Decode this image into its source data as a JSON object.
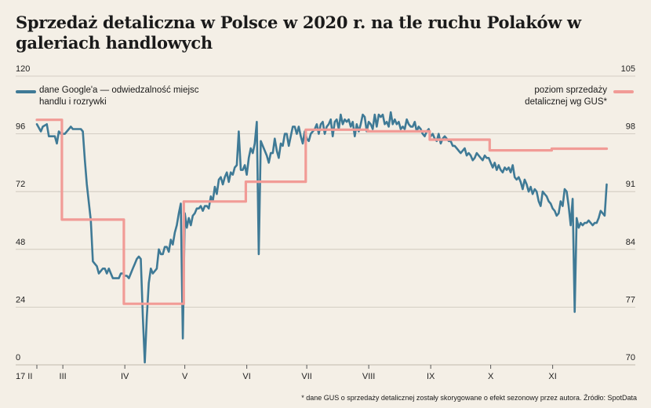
{
  "title": "Sprzedaż detaliczna w Polsce w 2020 r. na tle ruchu Polaków w galeriach handlowych",
  "footnote": "* dane GUS o sprzedaży detalicznej zostały skorygowane o efekt sezonowy przez autora. Źródło: SpotData",
  "colors": {
    "google": "#3f7a96",
    "gus": "#f19b96",
    "background": "#f4efe6",
    "grid": "#c9c3b8"
  },
  "chart_data": {
    "type": "line",
    "title": "Sprzedaż detaliczna w Polsce w 2020 r. na tle ruchu Polaków w galeriach handlowych",
    "x_ticks": [
      {
        "label": "17 II",
        "day": 0
      },
      {
        "label": "III",
        "day": 13
      },
      {
        "label": "IV",
        "day": 44
      },
      {
        "label": "V",
        "day": 74
      },
      {
        "label": "VI",
        "day": 105
      },
      {
        "label": "VII",
        "day": 135
      },
      {
        "label": "VIII",
        "day": 166
      },
      {
        "label": "IX",
        "day": 197
      },
      {
        "label": "X",
        "day": 227
      },
      {
        "label": "XI",
        "day": 258
      }
    ],
    "x_range": [
      0,
      286
    ],
    "y_left": {
      "ticks": [
        0,
        24,
        48,
        72,
        96,
        120
      ],
      "range": [
        0,
        120
      ]
    },
    "y_right": {
      "ticks": [
        70,
        77,
        84,
        91,
        98,
        105
      ],
      "range": [
        70,
        105
      ]
    },
    "grid": "horizontal",
    "series": [
      {
        "name": "dane Google'a — odwiedzalność miejsc handlu i rozrywki",
        "axis": "left",
        "points": [
          [
            0,
            100
          ],
          [
            2,
            97
          ],
          [
            3,
            99
          ],
          [
            5,
            100
          ],
          [
            6,
            95
          ],
          [
            8,
            95
          ],
          [
            9,
            95
          ],
          [
            10,
            92
          ],
          [
            11,
            97
          ],
          [
            12,
            96
          ],
          [
            14,
            96
          ],
          [
            16,
            98
          ],
          [
            17,
            99
          ],
          [
            18,
            98
          ],
          [
            20,
            98
          ],
          [
            22,
            98
          ],
          [
            23,
            97
          ],
          [
            24,
            85
          ],
          [
            25,
            75
          ],
          [
            27,
            60
          ],
          [
            28,
            43
          ],
          [
            29,
            42
          ],
          [
            30,
            41
          ],
          [
            31,
            38
          ],
          [
            33,
            40
          ],
          [
            34,
            40
          ],
          [
            35,
            38
          ],
          [
            36,
            40
          ],
          [
            37,
            38
          ],
          [
            38,
            36
          ],
          [
            40,
            36
          ],
          [
            41,
            36
          ],
          [
            42,
            38
          ],
          [
            43,
            38
          ],
          [
            44,
            37
          ],
          [
            45,
            37
          ],
          [
            46,
            36
          ],
          [
            47,
            38
          ],
          [
            48,
            40
          ],
          [
            49,
            42
          ],
          [
            50,
            44
          ],
          [
            51,
            45
          ],
          [
            52,
            44
          ],
          [
            53,
            20
          ],
          [
            54,
            1
          ],
          [
            55,
            20
          ],
          [
            56,
            34
          ],
          [
            57,
            40
          ],
          [
            58,
            38
          ],
          [
            59,
            39
          ],
          [
            60,
            40
          ],
          [
            61,
            48
          ],
          [
            62,
            46
          ],
          [
            63,
            46
          ],
          [
            64,
            49
          ],
          [
            65,
            49
          ],
          [
            66,
            47
          ],
          [
            67,
            52
          ],
          [
            68,
            50
          ],
          [
            69,
            55
          ],
          [
            70,
            58
          ],
          [
            71,
            63
          ],
          [
            72,
            67
          ],
          [
            73,
            11
          ],
          [
            74,
            63
          ],
          [
            75,
            57
          ],
          [
            76,
            61
          ],
          [
            77,
            58
          ],
          [
            78,
            62
          ],
          [
            79,
            63
          ],
          [
            80,
            65
          ],
          [
            81,
            65
          ],
          [
            82,
            66
          ],
          [
            83,
            64
          ],
          [
            84,
            66
          ],
          [
            85,
            66
          ],
          [
            86,
            65
          ],
          [
            87,
            70
          ],
          [
            88,
            68
          ],
          [
            89,
            74
          ],
          [
            90,
            71
          ],
          [
            91,
            77
          ],
          [
            92,
            78
          ],
          [
            93,
            75
          ],
          [
            94,
            78
          ],
          [
            95,
            80
          ],
          [
            96,
            76
          ],
          [
            97,
            80
          ],
          [
            98,
            79
          ],
          [
            99,
            82
          ],
          [
            100,
            83
          ],
          [
            101,
            97
          ],
          [
            102,
            81
          ],
          [
            103,
            81
          ],
          [
            104,
            83
          ],
          [
            105,
            79
          ],
          [
            106,
            86
          ],
          [
            107,
            90
          ],
          [
            108,
            88
          ],
          [
            109,
            92
          ],
          [
            110,
            101
          ],
          [
            111,
            46
          ],
          [
            112,
            93
          ],
          [
            113,
            91
          ],
          [
            114,
            89
          ],
          [
            115,
            87
          ],
          [
            116,
            84
          ],
          [
            117,
            88
          ],
          [
            118,
            88
          ],
          [
            119,
            94
          ],
          [
            120,
            89
          ],
          [
            121,
            86
          ],
          [
            122,
            92
          ],
          [
            123,
            91
          ],
          [
            124,
            96
          ],
          [
            125,
            96
          ],
          [
            126,
            91
          ],
          [
            127,
            95
          ],
          [
            128,
            99
          ],
          [
            129,
            99
          ],
          [
            130,
            96
          ],
          [
            131,
            99
          ],
          [
            132,
            95
          ],
          [
            133,
            92
          ],
          [
            134,
            97
          ],
          [
            135,
            94
          ],
          [
            136,
            93
          ],
          [
            137,
            96
          ],
          [
            138,
            97
          ],
          [
            139,
            98
          ],
          [
            140,
            100
          ],
          [
            141,
            96
          ],
          [
            142,
            100
          ],
          [
            143,
            101
          ],
          [
            144,
            96
          ],
          [
            145,
            99
          ],
          [
            146,
            100
          ],
          [
            147,
            102
          ],
          [
            148,
            95
          ],
          [
            149,
            101
          ],
          [
            150,
            102
          ],
          [
            151,
            98
          ],
          [
            152,
            104
          ],
          [
            153,
            100
          ],
          [
            154,
            102
          ],
          [
            155,
            101
          ],
          [
            156,
            102
          ],
          [
            157,
            99
          ],
          [
            158,
            101
          ],
          [
            159,
            95
          ],
          [
            160,
            100
          ],
          [
            161,
            97
          ],
          [
            162,
            100
          ],
          [
            163,
            104
          ],
          [
            164,
            103
          ],
          [
            165,
            97
          ],
          [
            166,
            101
          ],
          [
            167,
            100
          ],
          [
            168,
            98
          ],
          [
            169,
            104
          ],
          [
            170,
            99
          ],
          [
            171,
            104
          ],
          [
            172,
            103
          ],
          [
            173,
            104
          ],
          [
            174,
            100
          ],
          [
            175,
            101
          ],
          [
            176,
            99
          ],
          [
            177,
            105
          ],
          [
            178,
            100
          ],
          [
            179,
            102
          ],
          [
            180,
            100
          ],
          [
            181,
            101
          ],
          [
            182,
            98
          ],
          [
            183,
            99
          ],
          [
            184,
            98
          ],
          [
            185,
            102
          ],
          [
            186,
            100
          ],
          [
            187,
            99
          ],
          [
            188,
            99
          ],
          [
            189,
            101
          ],
          [
            190,
            97
          ],
          [
            191,
            99
          ],
          [
            192,
            98
          ],
          [
            193,
            96
          ],
          [
            194,
            95
          ],
          [
            195,
            97
          ],
          [
            196,
            98
          ],
          [
            197,
            95
          ],
          [
            198,
            96
          ],
          [
            199,
            94
          ],
          [
            200,
            93
          ],
          [
            201,
            96
          ],
          [
            202,
            92
          ],
          [
            203,
            94
          ],
          [
            204,
            95
          ],
          [
            205,
            94
          ],
          [
            206,
            93
          ],
          [
            207,
            93
          ],
          [
            208,
            91
          ],
          [
            209,
            91
          ],
          [
            210,
            90
          ],
          [
            211,
            89
          ],
          [
            212,
            88
          ],
          [
            213,
            89
          ],
          [
            214,
            90
          ],
          [
            215,
            87
          ],
          [
            216,
            88
          ],
          [
            217,
            87
          ],
          [
            218,
            85
          ],
          [
            219,
            86
          ],
          [
            220,
            88
          ],
          [
            221,
            87
          ],
          [
            222,
            86
          ],
          [
            223,
            85
          ],
          [
            224,
            87
          ],
          [
            225,
            86
          ],
          [
            226,
            86
          ],
          [
            227,
            84
          ],
          [
            228,
            82
          ],
          [
            229,
            84
          ],
          [
            230,
            81
          ],
          [
            231,
            83
          ],
          [
            232,
            81
          ],
          [
            233,
            80
          ],
          [
            234,
            82
          ],
          [
            235,
            81
          ],
          [
            236,
            82
          ],
          [
            237,
            80
          ],
          [
            238,
            83
          ],
          [
            239,
            78
          ],
          [
            240,
            77
          ],
          [
            241,
            78
          ],
          [
            242,
            76
          ],
          [
            243,
            73
          ],
          [
            244,
            77
          ],
          [
            245,
            75
          ],
          [
            246,
            72
          ],
          [
            247,
            74
          ],
          [
            248,
            71
          ],
          [
            249,
            73
          ],
          [
            250,
            72
          ],
          [
            251,
            68
          ],
          [
            252,
            66
          ],
          [
            253,
            72
          ],
          [
            254,
            71
          ],
          [
            255,
            70
          ],
          [
            256,
            68
          ],
          [
            257,
            67
          ],
          [
            258,
            65
          ],
          [
            259,
            64
          ],
          [
            260,
            62
          ],
          [
            261,
            63
          ],
          [
            262,
            68
          ],
          [
            263,
            66
          ],
          [
            264,
            73
          ],
          [
            265,
            72
          ],
          [
            266,
            66
          ],
          [
            267,
            58
          ],
          [
            268,
            69
          ],
          [
            269,
            22
          ],
          [
            270,
            61
          ],
          [
            271,
            57
          ],
          [
            272,
            59
          ],
          [
            273,
            58
          ],
          [
            274,
            59
          ],
          [
            275,
            59
          ],
          [
            276,
            60
          ],
          [
            277,
            59
          ],
          [
            278,
            58
          ],
          [
            279,
            59
          ],
          [
            280,
            59
          ],
          [
            281,
            61
          ],
          [
            282,
            64
          ],
          [
            283,
            63
          ],
          [
            284,
            62
          ],
          [
            285,
            75
          ]
        ]
      },
      {
        "name": "poziom sprzedaży detalicznej wg GUS*",
        "axis": "right",
        "points": [
          [
            0,
            99.7
          ],
          [
            12.5,
            99.7
          ],
          [
            12.5,
            87.6
          ],
          [
            43.5,
            87.6
          ],
          [
            43.5,
            77.4
          ],
          [
            73.5,
            77.4
          ],
          [
            73.5,
            89.8
          ],
          [
            104.5,
            89.8
          ],
          [
            104.5,
            92.2
          ],
          [
            134.5,
            92.2
          ],
          [
            134.5,
            98.5
          ],
          [
            165.5,
            98.5
          ],
          [
            165.5,
            98.3
          ],
          [
            196.5,
            98.3
          ],
          [
            196.5,
            97.3
          ],
          [
            226.5,
            97.3
          ],
          [
            226.5,
            96.0
          ],
          [
            257.5,
            96.0
          ],
          [
            257.5,
            96.2
          ],
          [
            285,
            96.2
          ]
        ]
      }
    ],
    "legend": {
      "left": {
        "line1": "dane Google'a — odwiedzalność miejsc",
        "line2": "handlu i rozrywki"
      },
      "right": {
        "line1": "poziom sprzedaży",
        "line2": "detalicznej wg GUS*"
      }
    }
  }
}
